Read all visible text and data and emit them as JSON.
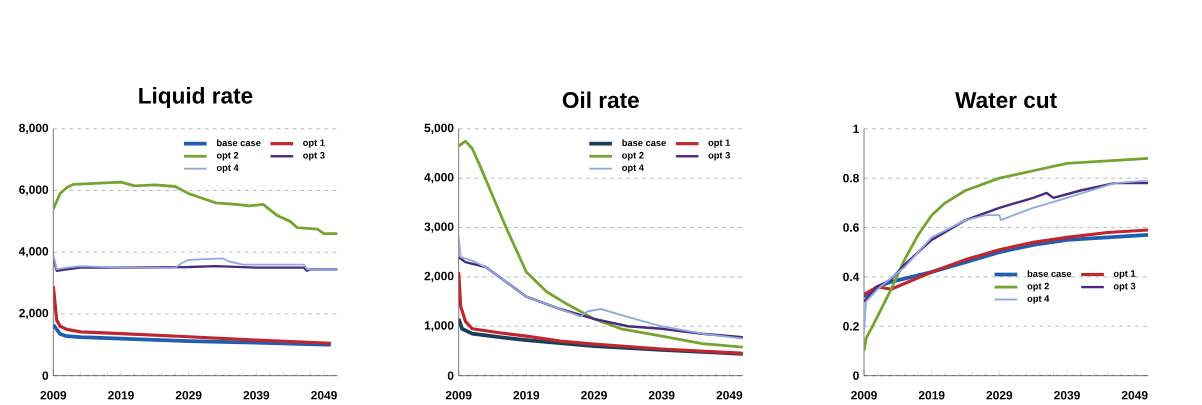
{
  "chart_data": [
    {
      "type": "line",
      "title": "Liquid rate",
      "xlim": [
        2009,
        2051
      ],
      "ylim": [
        0,
        8000
      ],
      "xticks": [
        2009,
        2019,
        2029,
        2039,
        2049
      ],
      "yticks": [
        0,
        {
          "value": 2000,
          "label": "2,000"
        },
        {
          "value": 4000,
          "label": "4,000"
        },
        {
          "value": 6000,
          "label": "6,000"
        },
        {
          "value": 8000,
          "label": "8,000"
        }
      ],
      "grid": "y",
      "legend": "top right",
      "series": [
        {
          "name": "base case",
          "color": "#1f5fae",
          "x": [
            2009,
            2010,
            2011,
            2013,
            2019,
            2029,
            2039,
            2050
          ],
          "values": [
            1650,
            1350,
            1280,
            1250,
            1200,
            1120,
            1070,
            1000
          ]
        },
        {
          "name": "opt 1",
          "color": "#c0262d",
          "x": [
            2009,
            2009.5,
            2010,
            2011,
            2013,
            2019,
            2029,
            2039,
            2050
          ],
          "values": [
            2900,
            1800,
            1600,
            1500,
            1420,
            1360,
            1260,
            1150,
            1050
          ]
        },
        {
          "name": "opt 2",
          "color": "#77a331",
          "x": [
            2009,
            2010,
            2011,
            2012,
            2019,
            2021,
            2024,
            2027,
            2029,
            2031,
            2033,
            2036,
            2038,
            2040,
            2042,
            2044,
            2045,
            2048,
            2049,
            2051
          ],
          "values": [
            5400,
            5900,
            6100,
            6200,
            6270,
            6150,
            6180,
            6130,
            5900,
            5750,
            5600,
            5550,
            5500,
            5550,
            5200,
            5000,
            4800,
            4750,
            4600,
            4600
          ]
        },
        {
          "name": "opt 3",
          "color": "#4b2a7f",
          "x": [
            2009,
            2009.5,
            2011,
            2013,
            2019,
            2029,
            2033,
            2039,
            2046,
            2046.5,
            2047,
            2051
          ],
          "values": [
            3800,
            3400,
            3450,
            3500,
            3500,
            3520,
            3550,
            3500,
            3500,
            3400,
            3450,
            3450
          ]
        },
        {
          "name": "opt 4",
          "color": "#8faadc",
          "x": [
            2009,
            2009.5,
            2011,
            2013,
            2019,
            2027,
            2028,
            2029,
            2034,
            2035,
            2037,
            2046,
            2046.5,
            2051
          ],
          "values": [
            3900,
            3450,
            3500,
            3550,
            3500,
            3500,
            3650,
            3750,
            3800,
            3700,
            3600,
            3600,
            3450,
            3450
          ]
        }
      ]
    },
    {
      "type": "line",
      "title": "Oil rate",
      "xlim": [
        2009,
        2051
      ],
      "ylim": [
        0,
        5000
      ],
      "xticks": [
        2009,
        2019,
        2029,
        2039,
        2049
      ],
      "yticks": [
        0,
        {
          "value": 1000,
          "label": "1,000"
        },
        {
          "value": 2000,
          "label": "2,000"
        },
        {
          "value": 3000,
          "label": "3,000"
        },
        {
          "value": 4000,
          "label": "4,000"
        },
        {
          "value": 5000,
          "label": "5,000"
        }
      ],
      "grid": "y",
      "legend": "top right",
      "series": [
        {
          "name": "base case",
          "color": "#1a3f5c",
          "x": [
            2009,
            2009.5,
            2011,
            2015,
            2019,
            2024,
            2029,
            2039,
            2051
          ],
          "values": [
            1150,
            950,
            850,
            780,
            720,
            660,
            600,
            520,
            440
          ]
        },
        {
          "name": "opt 1",
          "color": "#c0262d",
          "x": [
            2009,
            2009.3,
            2010,
            2011,
            2015,
            2019,
            2024,
            2029,
            2039,
            2051
          ],
          "values": [
            2100,
            1400,
            1100,
            950,
            870,
            800,
            700,
            640,
            540,
            450
          ]
        },
        {
          "name": "opt 2",
          "color": "#77a331",
          "x": [
            2009,
            2010,
            2011,
            2012,
            2014,
            2016,
            2019,
            2022,
            2025,
            2029,
            2033,
            2039,
            2045,
            2051
          ],
          "values": [
            4650,
            4750,
            4600,
            4300,
            3650,
            3000,
            2100,
            1700,
            1450,
            1150,
            950,
            800,
            650,
            580
          ]
        },
        {
          "name": "opt 3",
          "color": "#4b2a7f",
          "x": [
            2009,
            2010,
            2013,
            2016,
            2019,
            2024,
            2029,
            2034,
            2039,
            2045,
            2051
          ],
          "values": [
            2400,
            2300,
            2200,
            1900,
            1600,
            1350,
            1150,
            1000,
            950,
            850,
            780
          ]
        },
        {
          "name": "opt 4",
          "color": "#8faadc",
          "x": [
            2009,
            2009.3,
            2011,
            2013,
            2016,
            2019,
            2024,
            2027,
            2028,
            2030,
            2035,
            2039,
            2045,
            2051
          ],
          "values": [
            2800,
            2400,
            2330,
            2200,
            1900,
            1600,
            1350,
            1200,
            1300,
            1350,
            1150,
            1000,
            850,
            750
          ]
        }
      ]
    },
    {
      "type": "line",
      "title": "Water cut",
      "xlim": [
        2009,
        2051
      ],
      "ylim": [
        0,
        1
      ],
      "xticks": [
        2009,
        2019,
        2029,
        2039,
        2049
      ],
      "yticks": [
        0,
        0.2,
        0.4,
        0.6,
        0.8,
        1
      ],
      "grid": "y",
      "legend": "right",
      "series": [
        {
          "name": "base case",
          "color": "#1f5fae",
          "x": [
            2009,
            2011,
            2013,
            2019,
            2024,
            2029,
            2034,
            2039,
            2045,
            2051
          ],
          "values": [
            0.32,
            0.36,
            0.38,
            0.42,
            0.46,
            0.5,
            0.53,
            0.55,
            0.56,
            0.57
          ]
        },
        {
          "name": "opt 1",
          "color": "#c0262d",
          "x": [
            2009,
            2011,
            2013,
            2019,
            2024,
            2029,
            2034,
            2039,
            2045,
            2051
          ],
          "values": [
            0.33,
            0.36,
            0.35,
            0.42,
            0.47,
            0.51,
            0.54,
            0.56,
            0.58,
            0.59
          ]
        },
        {
          "name": "opt 2",
          "color": "#77a331",
          "x": [
            2009,
            2009.3,
            2011,
            2013,
            2015,
            2017,
            2019,
            2021,
            2024,
            2029,
            2034,
            2039,
            2045,
            2051
          ],
          "values": [
            0.1,
            0.15,
            0.24,
            0.35,
            0.47,
            0.57,
            0.65,
            0.7,
            0.75,
            0.8,
            0.83,
            0.86,
            0.87,
            0.88
          ]
        },
        {
          "name": "opt 3",
          "color": "#4b2a7f",
          "x": [
            2009,
            2011,
            2013,
            2015,
            2019,
            2024,
            2029,
            2034,
            2036,
            2037,
            2041,
            2046,
            2051
          ],
          "values": [
            0.3,
            0.36,
            0.39,
            0.45,
            0.55,
            0.63,
            0.68,
            0.72,
            0.74,
            0.72,
            0.75,
            0.78,
            0.78
          ]
        },
        {
          "name": "opt 4",
          "color": "#8faadc",
          "x": [
            2009,
            2009.3,
            2011,
            2015,
            2019,
            2024,
            2027,
            2029,
            2029.2,
            2034,
            2039,
            2046,
            2051
          ],
          "values": [
            0.18,
            0.3,
            0.35,
            0.44,
            0.56,
            0.63,
            0.65,
            0.65,
            0.63,
            0.68,
            0.72,
            0.78,
            0.79
          ]
        }
      ]
    }
  ]
}
